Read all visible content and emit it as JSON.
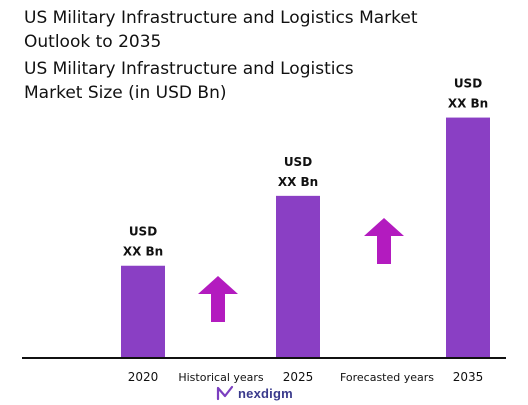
{
  "header": {
    "title": "US Military Infrastructure and Logistics Market Outlook to 2035",
    "subtitle": "US Military Infrastructure and Logistics Market Size (in USD Bn)"
  },
  "footer": {
    "brand": "nexdigm"
  },
  "colors": {
    "bar": "#8a3fc4",
    "arrow": "#b31bbf",
    "axis": "#111111",
    "logo": "#3a3a8c"
  },
  "chart_data": {
    "type": "bar",
    "title": "US Military Infrastructure and Logistics Market Size (in USD Bn)",
    "categories": [
      "2020",
      "2025",
      "2035"
    ],
    "values": [
      3.3,
      5.8,
      8.6
    ],
    "data_labels": [
      [
        "USD",
        "XX Bn"
      ],
      [
        "USD",
        "XX Bn"
      ],
      [
        "USD",
        "XX Bn"
      ]
    ],
    "period_labels": [
      "Historical years",
      "Forecasted years"
    ],
    "annotations": [
      "up-arrow",
      "up-arrow"
    ],
    "ylim": [
      0,
      9.3
    ],
    "grid": false,
    "legend": "none"
  }
}
